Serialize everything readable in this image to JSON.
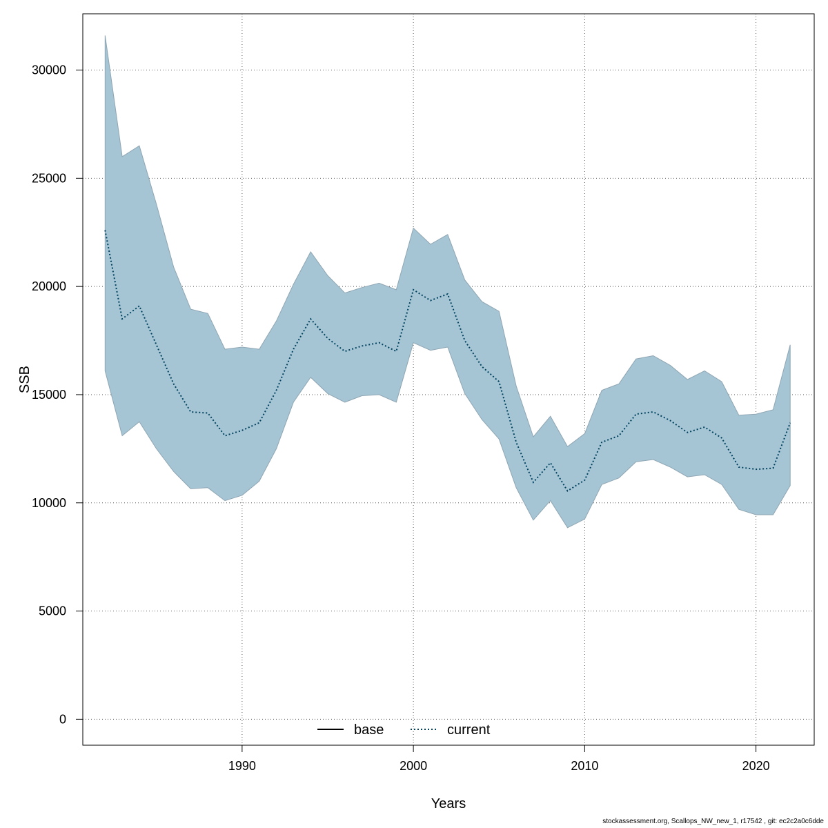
{
  "chart_data": {
    "type": "line",
    "title": "",
    "xlabel": "Years",
    "ylabel": "SSB",
    "xlim": [
      1980.7,
      2023.4
    ],
    "ylim": [
      -1200,
      32600
    ],
    "x_ticks": [
      1990,
      2000,
      2010,
      2020
    ],
    "y_ticks": [
      0,
      5000,
      10000,
      15000,
      20000,
      25000,
      30000
    ],
    "grid": true,
    "legend_position": "bottom",
    "colors": {
      "band": "#a5c4d4",
      "band_edge": "#8fa6b3",
      "current": "#00425e",
      "base": "#000000"
    },
    "x": [
      1982,
      1983,
      1984,
      1985,
      1986,
      1987,
      1988,
      1989,
      1990,
      1991,
      1992,
      1993,
      1994,
      1995,
      1996,
      1997,
      1998,
      1999,
      2000,
      2001,
      2002,
      2003,
      2004,
      2005,
      2006,
      2007,
      2008,
      2009,
      2010,
      2011,
      2012,
      2013,
      2014,
      2015,
      2016,
      2017,
      2018,
      2019,
      2020,
      2021,
      2022
    ],
    "series": [
      {
        "name": "base",
        "style": "solid",
        "values": [
          22600,
          18500,
          19100,
          17300,
          15500,
          14200,
          14150,
          13100,
          13350,
          13700,
          15200,
          17100,
          18500,
          17600,
          17000,
          17250,
          17400,
          17000,
          19850,
          19350,
          19650,
          17500,
          16300,
          15600,
          12800,
          10950,
          11850,
          10550,
          11050,
          12800,
          13100,
          14100,
          14200,
          13800,
          13250,
          13500,
          13000,
          11650,
          11550,
          11600,
          13700
        ]
      },
      {
        "name": "current",
        "style": "dotted",
        "values": [
          22600,
          18500,
          19100,
          17300,
          15500,
          14200,
          14150,
          13100,
          13350,
          13700,
          15200,
          17100,
          18500,
          17600,
          17000,
          17250,
          17400,
          17000,
          19850,
          19350,
          19650,
          17500,
          16300,
          15600,
          12800,
          10950,
          11850,
          10550,
          11050,
          12800,
          13100,
          14100,
          14200,
          13800,
          13250,
          13500,
          13000,
          11650,
          11550,
          11600,
          13700
        ]
      }
    ],
    "interval": {
      "upper": [
        31600,
        26000,
        26500,
        23800,
        20900,
        18950,
        18750,
        17100,
        17200,
        17100,
        18400,
        20100,
        21600,
        20500,
        19700,
        19950,
        20150,
        19850,
        22700,
        21950,
        22400,
        20300,
        19300,
        18850,
        15400,
        13050,
        14000,
        12600,
        13200,
        15200,
        15500,
        16650,
        16800,
        16350,
        15700,
        16100,
        15600,
        14050,
        14100,
        14300,
        17300
      ],
      "lower": [
        16100,
        13100,
        13750,
        12500,
        11450,
        10650,
        10700,
        10100,
        10350,
        11000,
        12500,
        14650,
        15800,
        15050,
        14650,
        14950,
        15000,
        14650,
        17400,
        17050,
        17200,
        15050,
        13850,
        12950,
        10700,
        9200,
        10100,
        8850,
        9250,
        10850,
        11150,
        11900,
        12000,
        11650,
        11200,
        11300,
        10850,
        9700,
        9450,
        9450,
        10800
      ]
    }
  },
  "footer": "stockassessment.org, Scallops_NW_new_1, r17542 , git: ec2c2a0c6dde"
}
